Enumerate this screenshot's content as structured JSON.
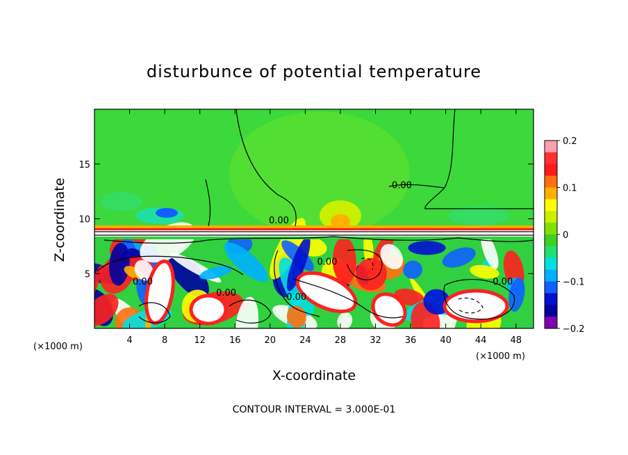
{
  "chart_data": {
    "type": "heatmap",
    "title": "disturbunce of potential temperature",
    "xlabel": "X-coordinate",
    "ylabel": "Z-coordinate",
    "x_unit_left": "(×1000 m)",
    "x_unit_right": "(×1000 m)",
    "footer": "CONTOUR INTERVAL = 3.000E-01",
    "xlim": [
      0,
      50
    ],
    "ylim": [
      0,
      20
    ],
    "x_ticks": [
      4,
      8,
      12,
      16,
      20,
      24,
      28,
      32,
      36,
      40,
      44,
      48
    ],
    "x_tick_labels": [
      "4",
      "8",
      "12",
      "16",
      "20",
      "24",
      "28",
      "32",
      "36",
      "40",
      "44",
      "48"
    ],
    "y_ticks": [
      5,
      10,
      15
    ],
    "y_tick_labels": [
      "5",
      "10",
      "15"
    ],
    "colorbar": {
      "range": [
        -0.2,
        0.2
      ],
      "tick_values": [
        0.2,
        0.1,
        0,
        -0.1,
        -0.2
      ],
      "tick_labels": [
        "0.2",
        "0.1",
        "0",
        "−0.1",
        "−0.2"
      ],
      "colors": [
        "#ff9fb0",
        "#ff3030",
        "#ff1a1a",
        "#ff7010",
        "#ffb000",
        "#ffff00",
        "#c8f000",
        "#80e000",
        "#3cd020",
        "#20e070",
        "#00e0e0",
        "#00b0ff",
        "#1060ff",
        "#0010d0",
        "#0000a0",
        "#8000b0"
      ]
    },
    "contour_labels": [
      {
        "text": "0.00",
        "x": 35.0,
        "y": 12.8
      },
      {
        "text": "0.00",
        "x": 21.0,
        "y": 9.6
      },
      {
        "text": "0.00",
        "x": 26.5,
        "y": 5.8
      },
      {
        "text": "0.00",
        "x": 5.5,
        "y": 4.0
      },
      {
        "text": "0.00",
        "x": 15.0,
        "y": 3.0
      },
      {
        "text": "0.00",
        "x": 23.0,
        "y": 2.6
      },
      {
        "text": "0.00",
        "x": 46.5,
        "y": 4.0
      }
    ]
  }
}
